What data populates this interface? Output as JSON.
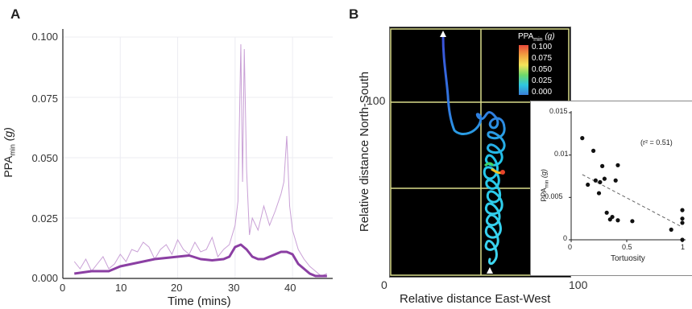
{
  "panel_a": {
    "letter": "A",
    "ylabel_main": "PPA",
    "ylabel_sub": "min",
    "ylabel_unit": "(g)",
    "xlabel": "Time (mins)",
    "yticks": [
      "0.000",
      "0.025",
      "0.050",
      "0.075",
      "0.100"
    ],
    "xticks": [
      "0",
      "10",
      "20",
      "30",
      "40"
    ]
  },
  "panel_b": {
    "letter": "B",
    "xlabel": "Relative distance East-West",
    "ylabel": "Relative distance North-South",
    "xticks": [
      "0",
      "100"
    ],
    "yticks": [
      "100"
    ],
    "colorbar_title_main": "PPA",
    "colorbar_title_sub": "min",
    "colorbar_title_unit": "(g)",
    "colorbar_ticks": [
      "0.100",
      "0.075",
      "0.050",
      "0.025",
      "0.000"
    ],
    "inset": {
      "xlabel": "Tortuosity",
      "ylabel_main": "PPA",
      "ylabel_sub": "min",
      "ylabel_unit": "(g)",
      "annotation": "(r² = 0.51)",
      "xticks": [
        "0",
        "0.5",
        "1"
      ],
      "yticks": [
        "0",
        "0.005",
        "0.01",
        "0.015"
      ]
    }
  },
  "colors": {
    "raw_line": "#c9a0d6",
    "smooth_line": "#8b3fa3",
    "grid": "#ececf2"
  },
  "chart_data": [
    {
      "type": "line",
      "panel": "A",
      "xlabel": "Time (mins)",
      "ylabel": "PPAmin (g)",
      "xlim": [
        0,
        47
      ],
      "ylim": [
        0,
        0.1
      ],
      "grid": true,
      "series": [
        {
          "x": [
            2,
            5,
            8,
            10,
            12,
            14,
            16,
            18,
            20,
            22,
            24,
            26,
            28,
            29,
            30,
            31,
            32,
            33,
            34,
            35,
            36,
            37,
            38,
            39,
            40,
            41,
            42,
            43,
            44,
            45,
            46
          ],
          "values": [
            0.002,
            0.003,
            0.003,
            0.005,
            0.006,
            0.007,
            0.008,
            0.0085,
            0.009,
            0.0095,
            0.008,
            0.0075,
            0.008,
            0.009,
            0.013,
            0.014,
            0.012,
            0.009,
            0.008,
            0.008,
            0.009,
            0.01,
            0.011,
            0.011,
            0.01,
            0.006,
            0.004,
            0.002,
            0.001,
            0.001,
            0.001
          ]
        },
        {
          "x": [
            2,
            3,
            4,
            5,
            6,
            7,
            8,
            9,
            10,
            11,
            12,
            13,
            14,
            15,
            16,
            17,
            18,
            19,
            20,
            21,
            22,
            23,
            24,
            25,
            26,
            27,
            28,
            29,
            30,
            30.5,
            31,
            31.3,
            31.6,
            32,
            32.5,
            33,
            34,
            35,
            36,
            37,
            38,
            38.5,
            39,
            39.5,
            40,
            41,
            42,
            43,
            44,
            45,
            46
          ],
          "values": [
            0.007,
            0.004,
            0.008,
            0.003,
            0.006,
            0.009,
            0.004,
            0.006,
            0.01,
            0.007,
            0.012,
            0.011,
            0.015,
            0.013,
            0.008,
            0.012,
            0.014,
            0.01,
            0.016,
            0.012,
            0.01,
            0.015,
            0.011,
            0.012,
            0.017,
            0.009,
            0.012,
            0.014,
            0.022,
            0.032,
            0.097,
            0.04,
            0.095,
            0.045,
            0.018,
            0.025,
            0.02,
            0.03,
            0.022,
            0.028,
            0.035,
            0.04,
            0.059,
            0.03,
            0.02,
            0.012,
            0.008,
            0.005,
            0.003,
            0.001,
            0.002
          ]
        }
      ]
    },
    {
      "type": "scatter",
      "panel": "B-inset",
      "xlabel": "Tortuosity",
      "ylabel": "PPAmin (g)",
      "xlim": [
        0,
        1
      ],
      "ylim": [
        0,
        0.015
      ],
      "annotation": "(r² = 0.51)",
      "x": [
        0.1,
        0.15,
        0.2,
        0.22,
        0.25,
        0.26,
        0.28,
        0.3,
        0.32,
        0.35,
        0.37,
        0.4,
        0.42,
        0.42,
        0.55,
        0.9,
        1.0,
        1.0,
        1.0,
        1.0
      ],
      "y": [
        0.012,
        0.0065,
        0.0105,
        0.007,
        0.0055,
        0.0068,
        0.0087,
        0.0072,
        0.0032,
        0.0024,
        0.0027,
        0.007,
        0.0088,
        0.0023,
        0.0022,
        0.0012,
        0.0035,
        0.0025,
        0.002,
        0.0
      ],
      "fit": {
        "x": [
          0.1,
          1.0
        ],
        "y": [
          0.0077,
          0.0015
        ]
      }
    }
  ]
}
